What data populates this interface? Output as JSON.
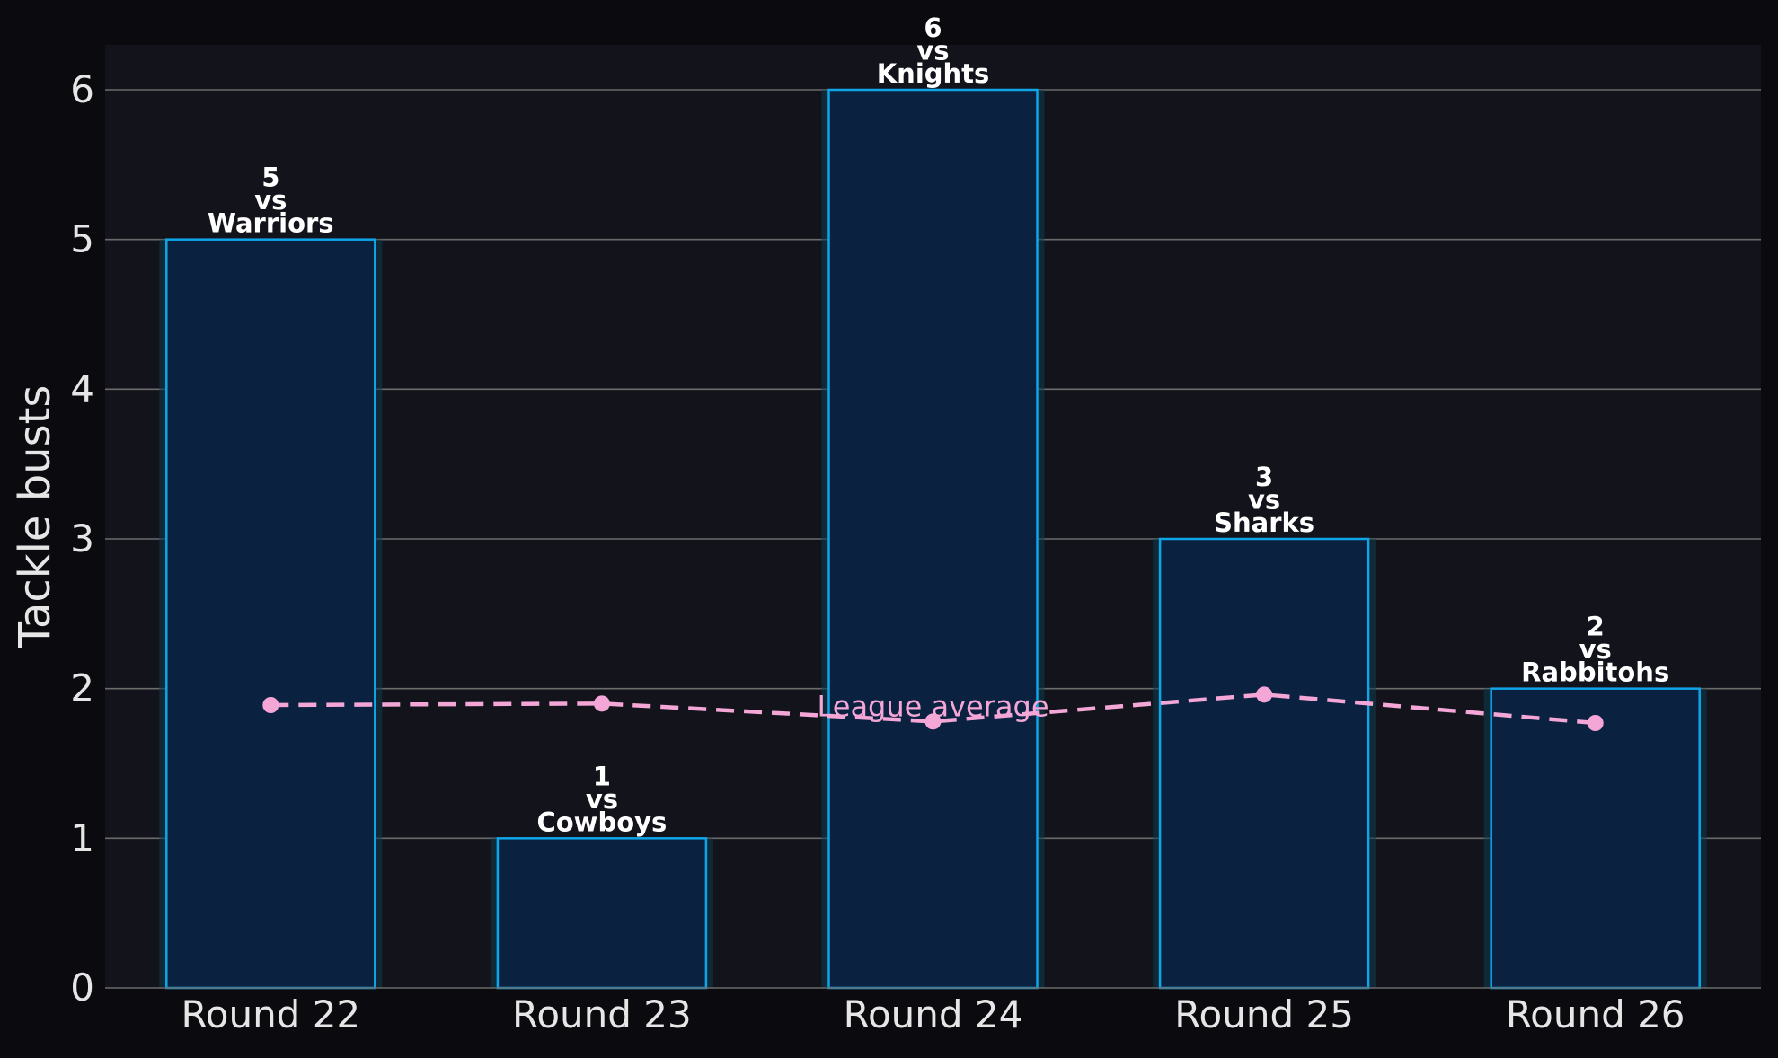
{
  "colors": {
    "background": "#0b0b0f",
    "plot_background": "#13141b",
    "bar_fill": "#0b2140",
    "bar_edge": "#0ea5e9",
    "bar_glow": "#0c3a4e",
    "grid": "#6b6b6b",
    "text": "#e6e6e6",
    "bar_label": "#ffffff",
    "average_line": "#f4a6d7"
  },
  "chart_data": {
    "type": "bar",
    "title": "",
    "xlabel": "",
    "ylabel": "Tackle busts",
    "categories": [
      "Round 22",
      "Round 23",
      "Round 24",
      "Round 25",
      "Round 26"
    ],
    "values": [
      5,
      1,
      6,
      3,
      2
    ],
    "opponents": [
      "Warriors",
      "Cowboys",
      "Knights",
      "Sharks",
      "Rabbitohs"
    ],
    "bar_label_connector": "vs",
    "ylim": [
      0,
      6.3
    ],
    "yticks": [
      0,
      1,
      2,
      3,
      4,
      5,
      6
    ],
    "grid": "horizontal",
    "average_series": {
      "name": "League average",
      "values": [
        1.89,
        1.9,
        1.78,
        1.96,
        1.77
      ],
      "style": "dashed-with-markers"
    }
  }
}
